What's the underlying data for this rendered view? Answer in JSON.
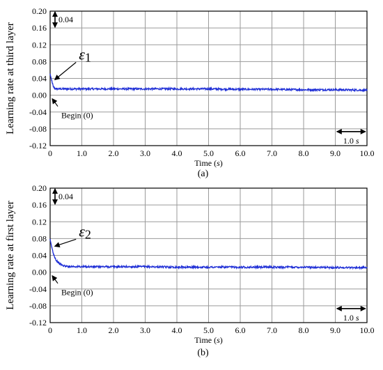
{
  "chart_data": [
    {
      "type": "line",
      "panel_label": "(a)",
      "ylabel": "Learning rate at third layer",
      "xlabel_prefix": "Time (",
      "xlabel_unit": "s",
      "xlabel_suffix": ")",
      "xlim": [
        0,
        10
      ],
      "ylim": [
        -0.12,
        0.2
      ],
      "x_ticks": [
        "0",
        "1.0",
        "2.0",
        "3.0",
        "4.0",
        "5.0",
        "6.0",
        "7.0",
        "8.0",
        "9.0",
        "10.0"
      ],
      "y_ticks": [
        "-0.12",
        "-0.08",
        "-0.04",
        "0.00",
        "0.04",
        "0.08",
        "0.12",
        "0.16",
        "0.20"
      ],
      "grid": true,
      "series": [
        {
          "color": "#1f2fd6",
          "x": [
            0,
            0.05,
            0.1,
            0.15,
            0.2,
            0.3,
            0.5,
            1,
            2,
            3,
            4,
            5,
            6,
            7,
            8,
            9,
            10
          ],
          "y": [
            0.05,
            0.035,
            0.02,
            0.016,
            0.015,
            0.015,
            0.015,
            0.015,
            0.015,
            0.015,
            0.015,
            0.015,
            0.014,
            0.014,
            0.013,
            0.013,
            0.012
          ]
        }
      ],
      "annotations": {
        "scale_bar_y": "0.04",
        "scale_bar_x_value": "1.0",
        "scale_bar_x_unit": "s",
        "begin_label": "Begin (0)",
        "epsilon_symbol": "ε",
        "epsilon_subscript": "1"
      }
    },
    {
      "type": "line",
      "panel_label": "(b)",
      "ylabel": "Learning rate at first layer",
      "xlabel_prefix": "Time (",
      "xlabel_unit": "s",
      "xlabel_suffix": ")",
      "xlim": [
        0,
        10
      ],
      "ylim": [
        -0.12,
        0.2
      ],
      "x_ticks": [
        "0",
        "1.0",
        "2.0",
        "3.0",
        "4.0",
        "5.0",
        "6.0",
        "7.0",
        "8.0",
        "9.0",
        "10.0"
      ],
      "y_ticks": [
        "-0.12",
        "-0.08",
        "-0.04",
        "0.00",
        "0.04",
        "0.08",
        "0.12",
        "0.16",
        "0.20"
      ],
      "grid": true,
      "series": [
        {
          "color": "#1f2fd6",
          "x": [
            0,
            0.05,
            0.1,
            0.15,
            0.2,
            0.3,
            0.4,
            0.5,
            1,
            2,
            3,
            4,
            5,
            6,
            7,
            8,
            9,
            10
          ],
          "y": [
            0.078,
            0.06,
            0.045,
            0.035,
            0.027,
            0.02,
            0.016,
            0.014,
            0.013,
            0.013,
            0.013,
            0.012,
            0.012,
            0.012,
            0.012,
            0.012,
            0.011,
            0.011
          ]
        }
      ],
      "annotations": {
        "scale_bar_y": "0.04",
        "scale_bar_x_value": "1.0",
        "scale_bar_x_unit": "s",
        "begin_label": "Begin (0)",
        "epsilon_symbol": "ε",
        "epsilon_subscript": "2"
      }
    }
  ]
}
